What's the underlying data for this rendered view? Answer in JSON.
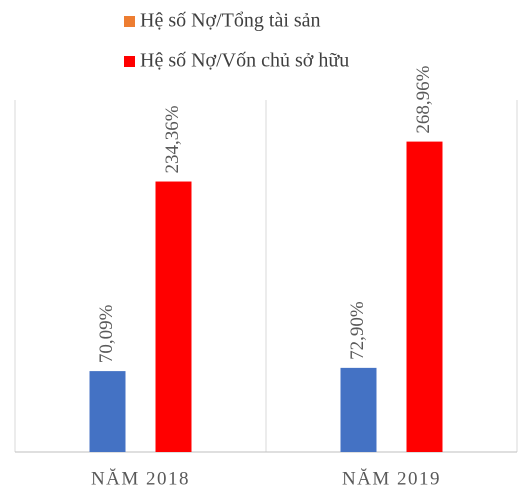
{
  "chart_data": {
    "type": "bar",
    "categories": [
      "NĂM 2018",
      "NĂM 2019"
    ],
    "series": [
      {
        "name": "Hệ số Nợ/Tổng tài sản",
        "color": "#4472c4",
        "legend_color": "#ed7d31",
        "values": [
          70.09,
          72.9
        ],
        "value_labels": [
          "70,09%",
          "72,90%"
        ]
      },
      {
        "name": "Hệ số Nợ/Vốn chủ sở hữu",
        "color": "#ff0000",
        "legend_color": "#ff0000",
        "values": [
          234.36,
          268.96
        ],
        "value_labels": [
          "234,36%",
          "268,96%"
        ]
      }
    ],
    "ylim": [
      0,
      305
    ],
    "legend": "top"
  }
}
